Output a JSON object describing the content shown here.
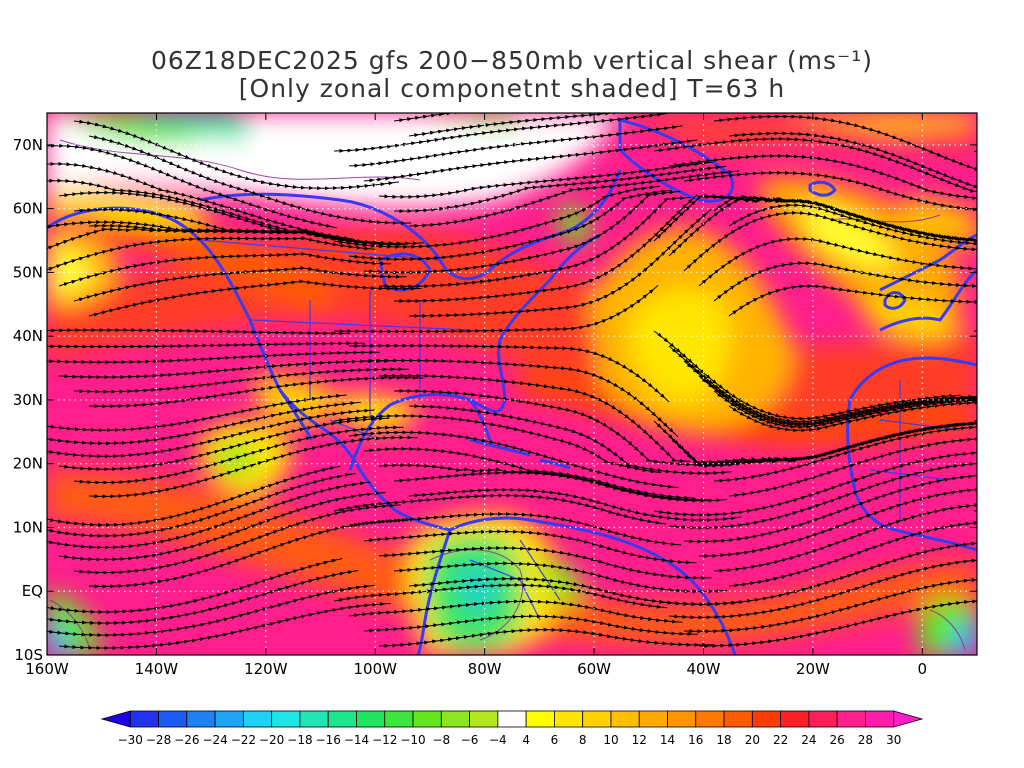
{
  "title": {
    "line1": "06Z18DEC2025 gfs 200−850mb vertical shear (ms⁻¹)",
    "line2": "[Only zonal componetnt shaded] T=63 h"
  },
  "map": {
    "projection": "lat-lon",
    "lon_range": [
      -160,
      10
    ],
    "lat_range": [
      -10,
      75
    ],
    "lon_ticks": [
      "160W",
      "140W",
      "120W",
      "100W",
      "80W",
      "60W",
      "40W",
      "20W",
      "0"
    ],
    "lat_ticks": [
      "10S",
      "EQ",
      "10N",
      "20N",
      "30N",
      "40N",
      "50N",
      "60N",
      "70N"
    ],
    "grid": true,
    "streamlines": true,
    "coastline_color": "#3a3af0",
    "contour_color": "#8a2a9a"
  },
  "colorbar": {
    "labels": [
      "−30",
      "−28",
      "−26",
      "−24",
      "−22",
      "−20",
      "−18",
      "−16",
      "−14",
      "−12",
      "−10",
      "−8",
      "−6",
      "−4",
      "4",
      "6",
      "8",
      "10",
      "12",
      "14",
      "16",
      "18",
      "20",
      "22",
      "24",
      "26",
      "28",
      "30"
    ],
    "colors": [
      "#1e00e6",
      "#2032f0",
      "#1e5af5",
      "#1e82f5",
      "#1ea5f5",
      "#1ed2f5",
      "#1ee6e6",
      "#1ee6b4",
      "#1ee68c",
      "#1ee664",
      "#3ce63c",
      "#64e61e",
      "#8ce61e",
      "#b4e61e",
      "#ffffff",
      "#ffff00",
      "#ffe600",
      "#ffd200",
      "#ffbe00",
      "#ffaa00",
      "#ff9600",
      "#ff7800",
      "#ff5a00",
      "#ff3c00",
      "#ff1e28",
      "#ff1e5a",
      "#ff1e8c",
      "#ff1eaa",
      "#ff1ec8"
    ]
  }
}
